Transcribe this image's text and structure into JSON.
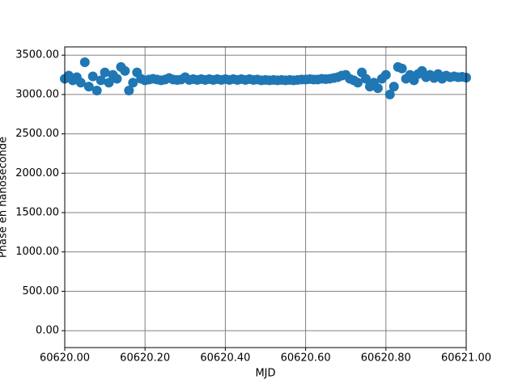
{
  "chart_data": {
    "type": "scatter",
    "x_label": "MJD",
    "y_label": "Phase en nanoseconde",
    "color": "#1f77b4",
    "grid": true,
    "xlim": [
      60620.0,
      60621.0
    ],
    "xticks": [
      {
        "value": 60620.0,
        "label": "60620.00"
      },
      {
        "value": 60620.2,
        "label": "60620.20"
      },
      {
        "value": 60620.4,
        "label": "60620.40"
      },
      {
        "value": 60620.6,
        "label": "60620.60"
      },
      {
        "value": 60620.8,
        "label": "60620.80"
      },
      {
        "value": 60621.0,
        "label": "60621.00"
      }
    ],
    "ylim": [
      -215,
      3605
    ],
    "yticks": [
      {
        "value": 0,
        "label": "0.00"
      },
      {
        "value": 500,
        "label": "500.00"
      },
      {
        "value": 1000,
        "label": "1000.00"
      },
      {
        "value": 1500,
        "label": "1500.00"
      },
      {
        "value": 2000,
        "label": "2000.00"
      },
      {
        "value": 2500,
        "label": "2500.00"
      },
      {
        "value": 3000,
        "label": "3000.00"
      },
      {
        "value": 3500,
        "label": "3500.00"
      }
    ],
    "x": [
      60620.0,
      60620.01,
      60620.02,
      60620.03,
      60620.04,
      60620.05,
      60620.06,
      60620.07,
      60620.08,
      60620.09,
      60620.1,
      60620.11,
      60620.12,
      60620.13,
      60620.14,
      60620.15,
      60620.16,
      60620.17,
      60620.18,
      60620.19,
      60620.2,
      60620.21,
      60620.22,
      60620.23,
      60620.24,
      60620.25,
      60620.26,
      60620.27,
      60620.28,
      60620.29,
      60620.3,
      60620.31,
      60620.32,
      60620.33,
      60620.34,
      60620.35,
      60620.36,
      60620.37,
      60620.38,
      60620.39,
      60620.4,
      60620.41,
      60620.42,
      60620.43,
      60620.44,
      60620.45,
      60620.46,
      60620.47,
      60620.48,
      60620.49,
      60620.5,
      60620.51,
      60620.52,
      60620.53,
      60620.54,
      60620.55,
      60620.56,
      60620.57,
      60620.58,
      60620.59,
      60620.6,
      60620.61,
      60620.62,
      60620.63,
      60620.64,
      60620.65,
      60620.66,
      60620.67,
      60620.68,
      60620.69,
      60620.7,
      60620.71,
      60620.72,
      60620.73,
      60620.74,
      60620.75,
      60620.76,
      60620.77,
      60620.78,
      60620.79,
      60620.8,
      60620.81,
      60620.82,
      60620.83,
      60620.84,
      60620.85,
      60620.86,
      60620.87,
      60620.88,
      60620.89,
      60620.9,
      60620.91,
      60620.92,
      60620.93,
      60620.94,
      60620.95,
      60620.96,
      60620.97,
      60620.98,
      60620.99,
      60621.0
    ],
    "values": [
      3200,
      3240,
      3180,
      3220,
      3150,
      3410,
      3100,
      3230,
      3050,
      3180,
      3280,
      3150,
      3250,
      3200,
      3350,
      3300,
      3050,
      3150,
      3280,
      3200,
      3180,
      3190,
      3200,
      3190,
      3180,
      3190,
      3210,
      3190,
      3185,
      3190,
      3220,
      3185,
      3195,
      3185,
      3195,
      3185,
      3195,
      3185,
      3195,
      3185,
      3195,
      3185,
      3195,
      3185,
      3195,
      3185,
      3195,
      3185,
      3190,
      3180,
      3185,
      3180,
      3185,
      3180,
      3185,
      3180,
      3185,
      3180,
      3185,
      3190,
      3190,
      3195,
      3190,
      3190,
      3200,
      3195,
      3200,
      3210,
      3220,
      3240,
      3250,
      3200,
      3180,
      3150,
      3280,
      3200,
      3100,
      3150,
      3080,
      3200,
      3250,
      3000,
      3100,
      3350,
      3330,
      3200,
      3250,
      3180,
      3260,
      3300,
      3220,
      3250,
      3210,
      3260,
      3200,
      3240,
      3220,
      3230,
      3220,
      3225,
      3215
    ]
  }
}
